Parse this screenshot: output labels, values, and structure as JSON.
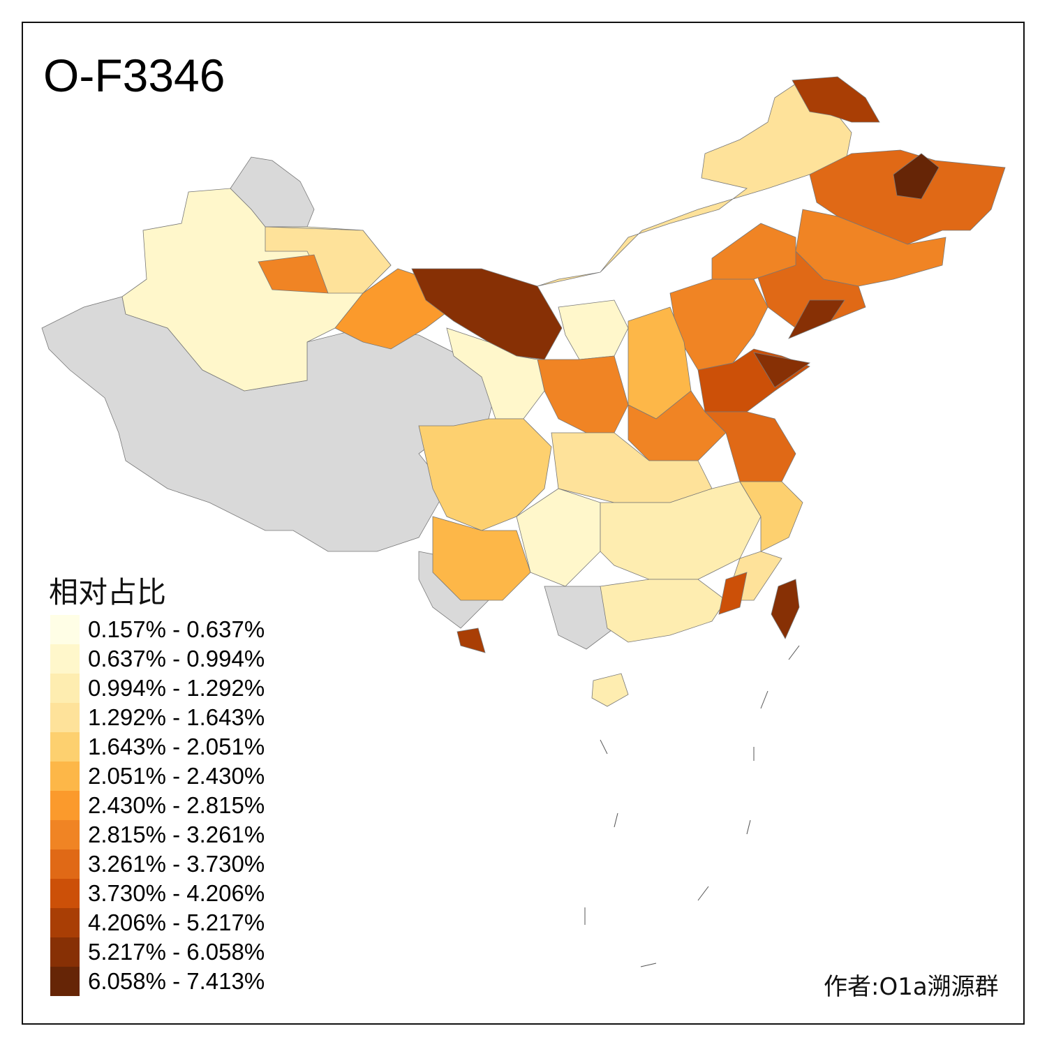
{
  "title": "O-F3346",
  "legend": {
    "title": "相对占比",
    "items": [
      {
        "label": "0.157% - 0.637%",
        "color": "#FFFEE6"
      },
      {
        "label": "0.637% - 0.994%",
        "color": "#FFF7CB"
      },
      {
        "label": "0.994% - 1.292%",
        "color": "#FEEDB0"
      },
      {
        "label": "1.292% - 1.643%",
        "color": "#FEE29A"
      },
      {
        "label": "1.643% - 2.051%",
        "color": "#FDD06F"
      },
      {
        "label": "2.051% - 2.430%",
        "color": "#FDB748"
      },
      {
        "label": "2.430% - 2.815%",
        "color": "#FB9A2C"
      },
      {
        "label": "2.815% - 3.261%",
        "color": "#F08424"
      },
      {
        "label": "3.261% - 3.730%",
        "color": "#E06916"
      },
      {
        "label": "3.730% - 4.206%",
        "color": "#CC5008"
      },
      {
        "label": "4.206% - 5.217%",
        "color": "#A93E05"
      },
      {
        "label": "5.217% - 6.058%",
        "color": "#873005"
      },
      {
        "label": "6.058% - 7.413%",
        "color": "#662506"
      }
    ]
  },
  "no_data_color": "#D9D9D9",
  "author": "作者:O1a溯源群"
}
